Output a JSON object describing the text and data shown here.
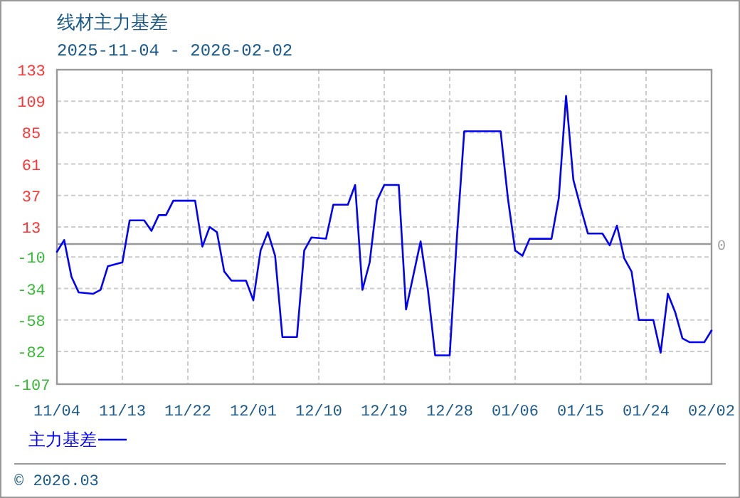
{
  "chart_data": {
    "type": "line",
    "title": "线材主力基差",
    "subtitle": "2025-11-04 - 2026-02-02",
    "annotations": [
      "© 2026.03"
    ],
    "x": [
      "2025-11-04",
      "2025-11-05",
      "2025-11-06",
      "2025-11-07",
      "2025-11-09",
      "2025-11-10",
      "2025-11-11",
      "2025-11-13",
      "2025-11-14",
      "2025-11-16",
      "2025-11-17",
      "2025-11-18",
      "2025-11-19",
      "2025-11-20",
      "2025-11-23",
      "2025-11-24",
      "2025-11-25",
      "2025-11-26",
      "2025-11-27",
      "2025-11-28",
      "2025-11-30",
      "2025-12-01",
      "2025-12-02",
      "2025-12-03",
      "2025-12-04",
      "2025-12-05",
      "2025-12-07",
      "2025-12-08",
      "2025-12-09",
      "2025-12-11",
      "2025-12-12",
      "2025-12-14",
      "2025-12-15",
      "2025-12-16",
      "2025-12-17",
      "2025-12-18",
      "2025-12-19",
      "2025-12-21",
      "2025-12-22",
      "2025-12-24",
      "2025-12-25",
      "2025-12-26",
      "2025-12-28",
      "2025-12-29",
      "2025-12-30",
      "2026-01-04",
      "2026-01-05",
      "2026-01-06",
      "2026-01-07",
      "2026-01-08",
      "2026-01-11",
      "2026-01-12",
      "2026-01-13",
      "2026-01-14",
      "2026-01-15",
      "2026-01-16",
      "2026-01-18",
      "2026-01-19",
      "2026-01-20",
      "2026-01-21",
      "2026-01-22",
      "2026-01-23",
      "2026-01-25",
      "2026-01-26",
      "2026-01-27",
      "2026-01-28",
      "2026-01-29",
      "2026-01-30",
      "2026-02-01",
      "2026-02-02"
    ],
    "series": [
      {
        "name": "主力基差",
        "color": "#0000ff",
        "values": [
          -6,
          3,
          -25,
          -37,
          -38,
          -35,
          -17,
          -14,
          18,
          18,
          10,
          22,
          22,
          33,
          33,
          -2,
          13,
          9,
          -21,
          -28,
          -28,
          -43,
          -5,
          9,
          -9,
          -71,
          -71,
          -5,
          5,
          4,
          30,
          30,
          45,
          -35,
          -14,
          33,
          45,
          45,
          -50,
          2,
          -35,
          -85,
          -85,
          6,
          86,
          86,
          35,
          -5,
          -9,
          4,
          4,
          35,
          113,
          49,
          28,
          8,
          8,
          -1,
          14,
          -11,
          -21,
          -58,
          -58,
          -83,
          -38,
          -52,
          -72,
          -75,
          -75,
          -66
        ]
      }
    ],
    "xlim": [
      "2025-11-04",
      "2026-02-02"
    ],
    "xticks": [
      {
        "value": "2025-11-04",
        "label": "11/04"
      },
      {
        "value": "2025-11-13",
        "label": "11/13"
      },
      {
        "value": "2025-11-22",
        "label": "11/22"
      },
      {
        "value": "2025-12-01",
        "label": "12/01"
      },
      {
        "value": "2025-12-10",
        "label": "12/10"
      },
      {
        "value": "2025-12-19",
        "label": "12/19"
      },
      {
        "value": "2025-12-28",
        "label": "12/28"
      },
      {
        "value": "2026-01-06",
        "label": "01/06"
      },
      {
        "value": "2026-01-15",
        "label": "01/15"
      },
      {
        "value": "2026-01-24",
        "label": "01/24"
      },
      {
        "value": "2026-02-02",
        "label": "02/02"
      }
    ],
    "ylim": [
      -107,
      133
    ],
    "yticks": [
      133,
      109,
      85,
      61,
      37,
      13,
      -10,
      -34,
      -58,
      -82,
      -107
    ],
    "ref_lines": [
      {
        "axis": "y",
        "value": 0,
        "label": "0",
        "color": "#999999"
      }
    ],
    "grid": true,
    "legend": "bottom left",
    "marker": "none",
    "line_style": "solid"
  }
}
